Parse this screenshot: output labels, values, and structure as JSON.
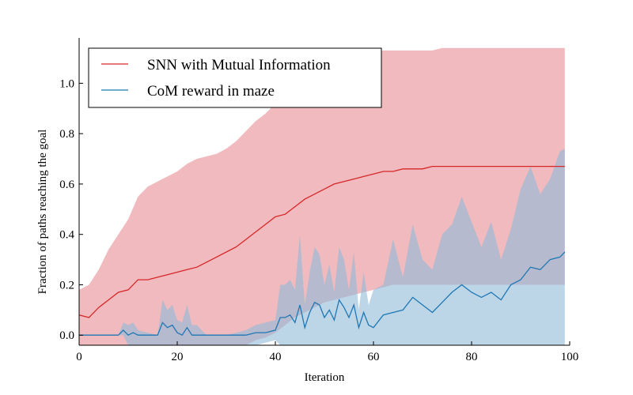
{
  "chart_data": {
    "type": "line",
    "title": "",
    "xlabel": "Iteration",
    "ylabel": "Fraction of paths reaching the goal",
    "xlim": [
      0,
      100
    ],
    "ylim": [
      -0.04,
      1.18
    ],
    "xticks": [
      "0",
      "20",
      "40",
      "60",
      "80",
      "100"
    ],
    "yticks": [
      "0.0",
      "0.2",
      "0.4",
      "0.6",
      "0.8",
      "1.0"
    ],
    "legend_position": "top-left",
    "grid": false,
    "series": [
      {
        "name": "SNN with Mutual Information",
        "color": "#d62728",
        "band_color": "#e9959b",
        "x": [
          0,
          2,
          4,
          6,
          8,
          10,
          12,
          14,
          16,
          18,
          20,
          22,
          24,
          26,
          28,
          30,
          32,
          34,
          36,
          38,
          40,
          42,
          44,
          46,
          48,
          50,
          52,
          54,
          56,
          58,
          60,
          62,
          64,
          66,
          68,
          70,
          72,
          74,
          76,
          78,
          80,
          82,
          84,
          86,
          88,
          90,
          92,
          94,
          96,
          98,
          99
        ],
        "mean": [
          0.08,
          0.07,
          0.11,
          0.14,
          0.17,
          0.18,
          0.22,
          0.22,
          0.23,
          0.24,
          0.25,
          0.26,
          0.27,
          0.29,
          0.31,
          0.33,
          0.35,
          0.38,
          0.41,
          0.44,
          0.47,
          0.48,
          0.51,
          0.54,
          0.56,
          0.58,
          0.6,
          0.61,
          0.62,
          0.63,
          0.64,
          0.65,
          0.65,
          0.66,
          0.66,
          0.66,
          0.67,
          0.67,
          0.67,
          0.67,
          0.67,
          0.67,
          0.67,
          0.67,
          0.67,
          0.67,
          0.67,
          0.67,
          0.67,
          0.67,
          0.67
        ],
        "upper": [
          0.18,
          0.2,
          0.26,
          0.34,
          0.4,
          0.46,
          0.55,
          0.59,
          0.61,
          0.63,
          0.65,
          0.68,
          0.7,
          0.71,
          0.72,
          0.74,
          0.77,
          0.81,
          0.85,
          0.88,
          0.92,
          0.96,
          0.99,
          1.02,
          1.05,
          1.08,
          1.1,
          1.11,
          1.12,
          1.12,
          1.13,
          1.13,
          1.13,
          1.13,
          1.13,
          1.13,
          1.13,
          1.14,
          1.14,
          1.14,
          1.14,
          1.14,
          1.14,
          1.14,
          1.14,
          1.14,
          1.14,
          1.14,
          1.14,
          1.14,
          1.14
        ],
        "lower": [
          -0.04,
          -0.04,
          -0.04,
          -0.04,
          -0.04,
          -0.04,
          -0.04,
          -0.04,
          -0.04,
          -0.04,
          -0.04,
          -0.04,
          -0.04,
          -0.04,
          -0.04,
          -0.04,
          -0.04,
          -0.04,
          -0.02,
          -0.01,
          0.01,
          0.04,
          0.07,
          0.09,
          0.11,
          0.13,
          0.14,
          0.15,
          0.16,
          0.17,
          0.18,
          0.19,
          0.2,
          0.2,
          0.2,
          0.2,
          0.2,
          0.2,
          0.2,
          0.2,
          0.2,
          0.2,
          0.2,
          0.2,
          0.2,
          0.2,
          0.2,
          0.2,
          0.2,
          0.2,
          0.2
        ]
      },
      {
        "name": "CoM reward in maze",
        "color": "#1f77b4",
        "band_color": "#8fbbd9",
        "x": [
          0,
          2,
          4,
          6,
          8,
          9,
          10,
          11,
          12,
          14,
          16,
          17,
          18,
          19,
          20,
          21,
          22,
          23,
          24,
          26,
          28,
          30,
          32,
          34,
          36,
          38,
          40,
          41,
          42,
          43,
          44,
          45,
          46,
          47,
          48,
          49,
          50,
          51,
          52,
          53,
          54,
          55,
          56,
          57,
          58,
          59,
          60,
          62,
          64,
          66,
          68,
          70,
          72,
          74,
          76,
          78,
          80,
          82,
          84,
          86,
          88,
          90,
          92,
          94,
          96,
          98,
          99
        ],
        "mean": [
          0.0,
          0.0,
          0.0,
          0.0,
          0.0,
          0.02,
          0.0,
          0.01,
          0.0,
          0.0,
          0.0,
          0.05,
          0.03,
          0.04,
          0.01,
          0.0,
          0.03,
          0.0,
          0.0,
          0.0,
          0.0,
          0.0,
          0.0,
          0.0,
          0.01,
          0.01,
          0.02,
          0.07,
          0.07,
          0.08,
          0.05,
          0.12,
          0.03,
          0.09,
          0.13,
          0.12,
          0.07,
          0.1,
          0.06,
          0.14,
          0.11,
          0.07,
          0.12,
          0.03,
          0.09,
          0.04,
          0.03,
          0.08,
          0.09,
          0.1,
          0.15,
          0.12,
          0.09,
          0.13,
          0.17,
          0.2,
          0.17,
          0.15,
          0.17,
          0.14,
          0.2,
          0.22,
          0.27,
          0.26,
          0.3,
          0.31,
          0.33
        ],
        "upper": [
          0.0,
          0.0,
          0.0,
          0.0,
          0.0,
          0.05,
          0.04,
          0.05,
          0.02,
          0.01,
          0.0,
          0.14,
          0.1,
          0.12,
          0.06,
          0.05,
          0.12,
          0.04,
          0.04,
          0.0,
          0.0,
          0.0,
          0.01,
          0.02,
          0.04,
          0.05,
          0.06,
          0.2,
          0.2,
          0.22,
          0.18,
          0.4,
          0.12,
          0.25,
          0.35,
          0.32,
          0.2,
          0.28,
          0.17,
          0.35,
          0.3,
          0.18,
          0.33,
          0.1,
          0.25,
          0.12,
          0.18,
          0.2,
          0.38,
          0.23,
          0.44,
          0.3,
          0.26,
          0.4,
          0.44,
          0.55,
          0.45,
          0.35,
          0.45,
          0.3,
          0.42,
          0.58,
          0.67,
          0.56,
          0.62,
          0.73,
          0.74
        ],
        "lower": [
          0.0,
          0.0,
          0.0,
          0.0,
          0.0,
          0.0,
          -0.04,
          -0.04,
          -0.04,
          -0.04,
          -0.04,
          -0.04,
          -0.04,
          -0.04,
          -0.04,
          -0.04,
          -0.04,
          -0.04,
          -0.04,
          -0.04,
          -0.04,
          -0.04,
          -0.04,
          -0.04,
          -0.04,
          -0.03,
          -0.02,
          -0.04,
          -0.04,
          -0.04,
          -0.04,
          -0.04,
          -0.04,
          -0.04,
          -0.04,
          -0.04,
          -0.04,
          -0.04,
          -0.04,
          -0.04,
          -0.04,
          -0.04,
          -0.04,
          -0.04,
          -0.04,
          -0.04,
          -0.04,
          -0.04,
          -0.04,
          -0.04,
          -0.04,
          -0.04,
          -0.04,
          -0.04,
          -0.04,
          -0.04,
          -0.04,
          -0.04,
          -0.04,
          -0.04,
          -0.04,
          -0.04,
          -0.04,
          -0.04,
          -0.04,
          -0.04,
          -0.04
        ]
      }
    ]
  }
}
